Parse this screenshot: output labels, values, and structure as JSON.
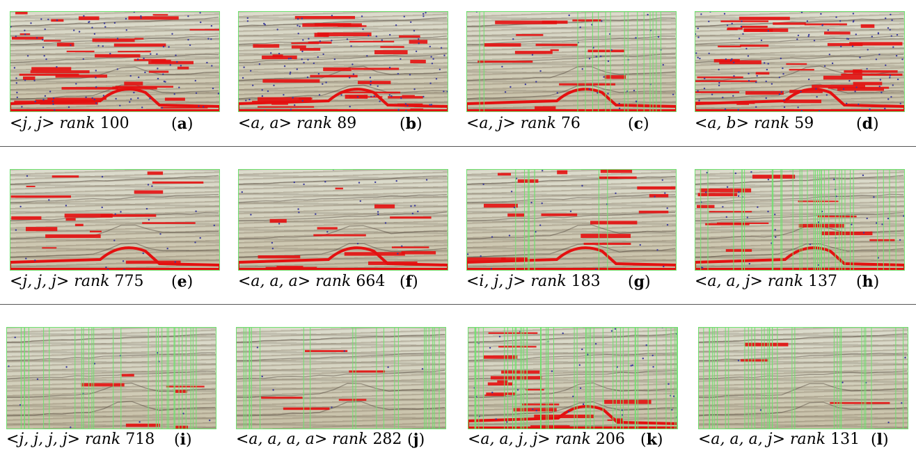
{
  "panels": [
    {
      "label": "a",
      "tuple": "<j, j>",
      "rank_word": "rank",
      "rank_value": "100"
    },
    {
      "label": "b",
      "tuple": "<a, a>",
      "rank_word": "rank",
      "rank_value": "89"
    },
    {
      "label": "c",
      "tuple": "<a, j>",
      "rank_word": "rank",
      "rank_value": "76"
    },
    {
      "label": "d",
      "tuple": "<a, b>",
      "rank_word": "rank",
      "rank_value": "59"
    },
    {
      "label": "e",
      "tuple": "<j, j, j>",
      "rank_word": "rank",
      "rank_value": "775"
    },
    {
      "label": "f",
      "tuple": "<a, a, a>",
      "rank_word": "rank",
      "rank_value": "664"
    },
    {
      "label": "g",
      "tuple": "<i, j, j>",
      "rank_word": "rank",
      "rank_value": "183"
    },
    {
      "label": "h",
      "tuple": "<a, a, j>",
      "rank_word": "rank",
      "rank_value": "137"
    },
    {
      "label": "i",
      "tuple": "<j, j, j, j>",
      "rank_word": "rank",
      "rank_value": "718"
    },
    {
      "label": "j",
      "tuple": "<a, a, a, a>",
      "rank_word": "rank",
      "rank_value": "282"
    },
    {
      "label": "k",
      "tuple": "<a, a, j, j>",
      "rank_word": "rank",
      "rank_value": "206"
    },
    {
      "label": "l",
      "tuple": "<a, a, a, j>",
      "rank_word": "rank",
      "rank_value": "131"
    }
  ],
  "colors": {
    "highlight": "#e41010",
    "points": "#3b3b9a",
    "box_outline": "#6fe36f",
    "separator": "#555555"
  },
  "overlay_density": [
    {
      "red": 0.95,
      "blue": 0.8,
      "green_strips": 0
    },
    {
      "red": 0.95,
      "blue": 0.8,
      "green_strips": 0
    },
    {
      "red": 0.35,
      "blue": 0.3,
      "green_strips": 8
    },
    {
      "red": 0.95,
      "blue": 0.9,
      "green_strips": 0
    },
    {
      "red": 0.45,
      "blue": 0.2,
      "green_strips": 0
    },
    {
      "red": 0.35,
      "blue": 0.2,
      "green_strips": 0
    },
    {
      "red": 0.45,
      "blue": 0.2,
      "green_strips": 4
    },
    {
      "red": 0.35,
      "blue": 0.3,
      "green_strips": 16
    },
    {
      "red": 0.15,
      "blue": 0.1,
      "green_strips": 14
    },
    {
      "red": 0.12,
      "blue": 0.05,
      "green_strips": 10
    },
    {
      "red": 0.45,
      "blue": 0.3,
      "green_strips": 22
    },
    {
      "red": 0.08,
      "blue": 0.05,
      "green_strips": 16
    }
  ]
}
